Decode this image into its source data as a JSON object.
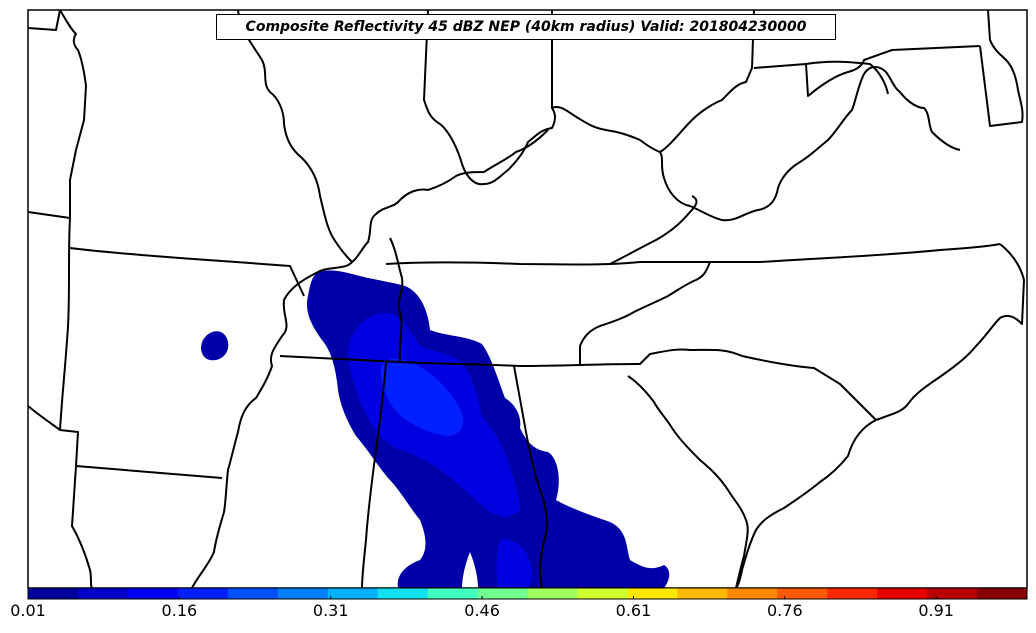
{
  "map": {
    "title": "Composite Reflectivity 45 dBZ NEP (40km radius) Valid: 201804230000",
    "layers": [
      "state-boundaries",
      "coastlines",
      "probability-field"
    ],
    "colorbar": {
      "min": 0.01,
      "max": 1.0,
      "tick_labels": [
        "0.01",
        "0.16",
        "0.31",
        "0.46",
        "0.61",
        "0.76",
        "0.91"
      ],
      "tick_values": [
        0.01,
        0.16,
        0.31,
        0.46,
        0.61,
        0.76,
        0.91
      ],
      "colors": [
        "#00009f",
        "#0000c8",
        "#0000f0",
        "#0020ff",
        "#0050ff",
        "#0080ff",
        "#00b0ff",
        "#10e0f0",
        "#40ffc0",
        "#70ff90",
        "#a0ff60",
        "#d0ff30",
        "#ffe800",
        "#ffb800",
        "#ff8800",
        "#ff5800",
        "#ff2800",
        "#e80000",
        "#b80000",
        "#880000"
      ]
    },
    "colors": {
      "outline": "#000000",
      "background": "#ffffff",
      "prob_low": "#0000a8",
      "prob_mid": "#0000e0",
      "prob_high": "#0020ff"
    }
  }
}
